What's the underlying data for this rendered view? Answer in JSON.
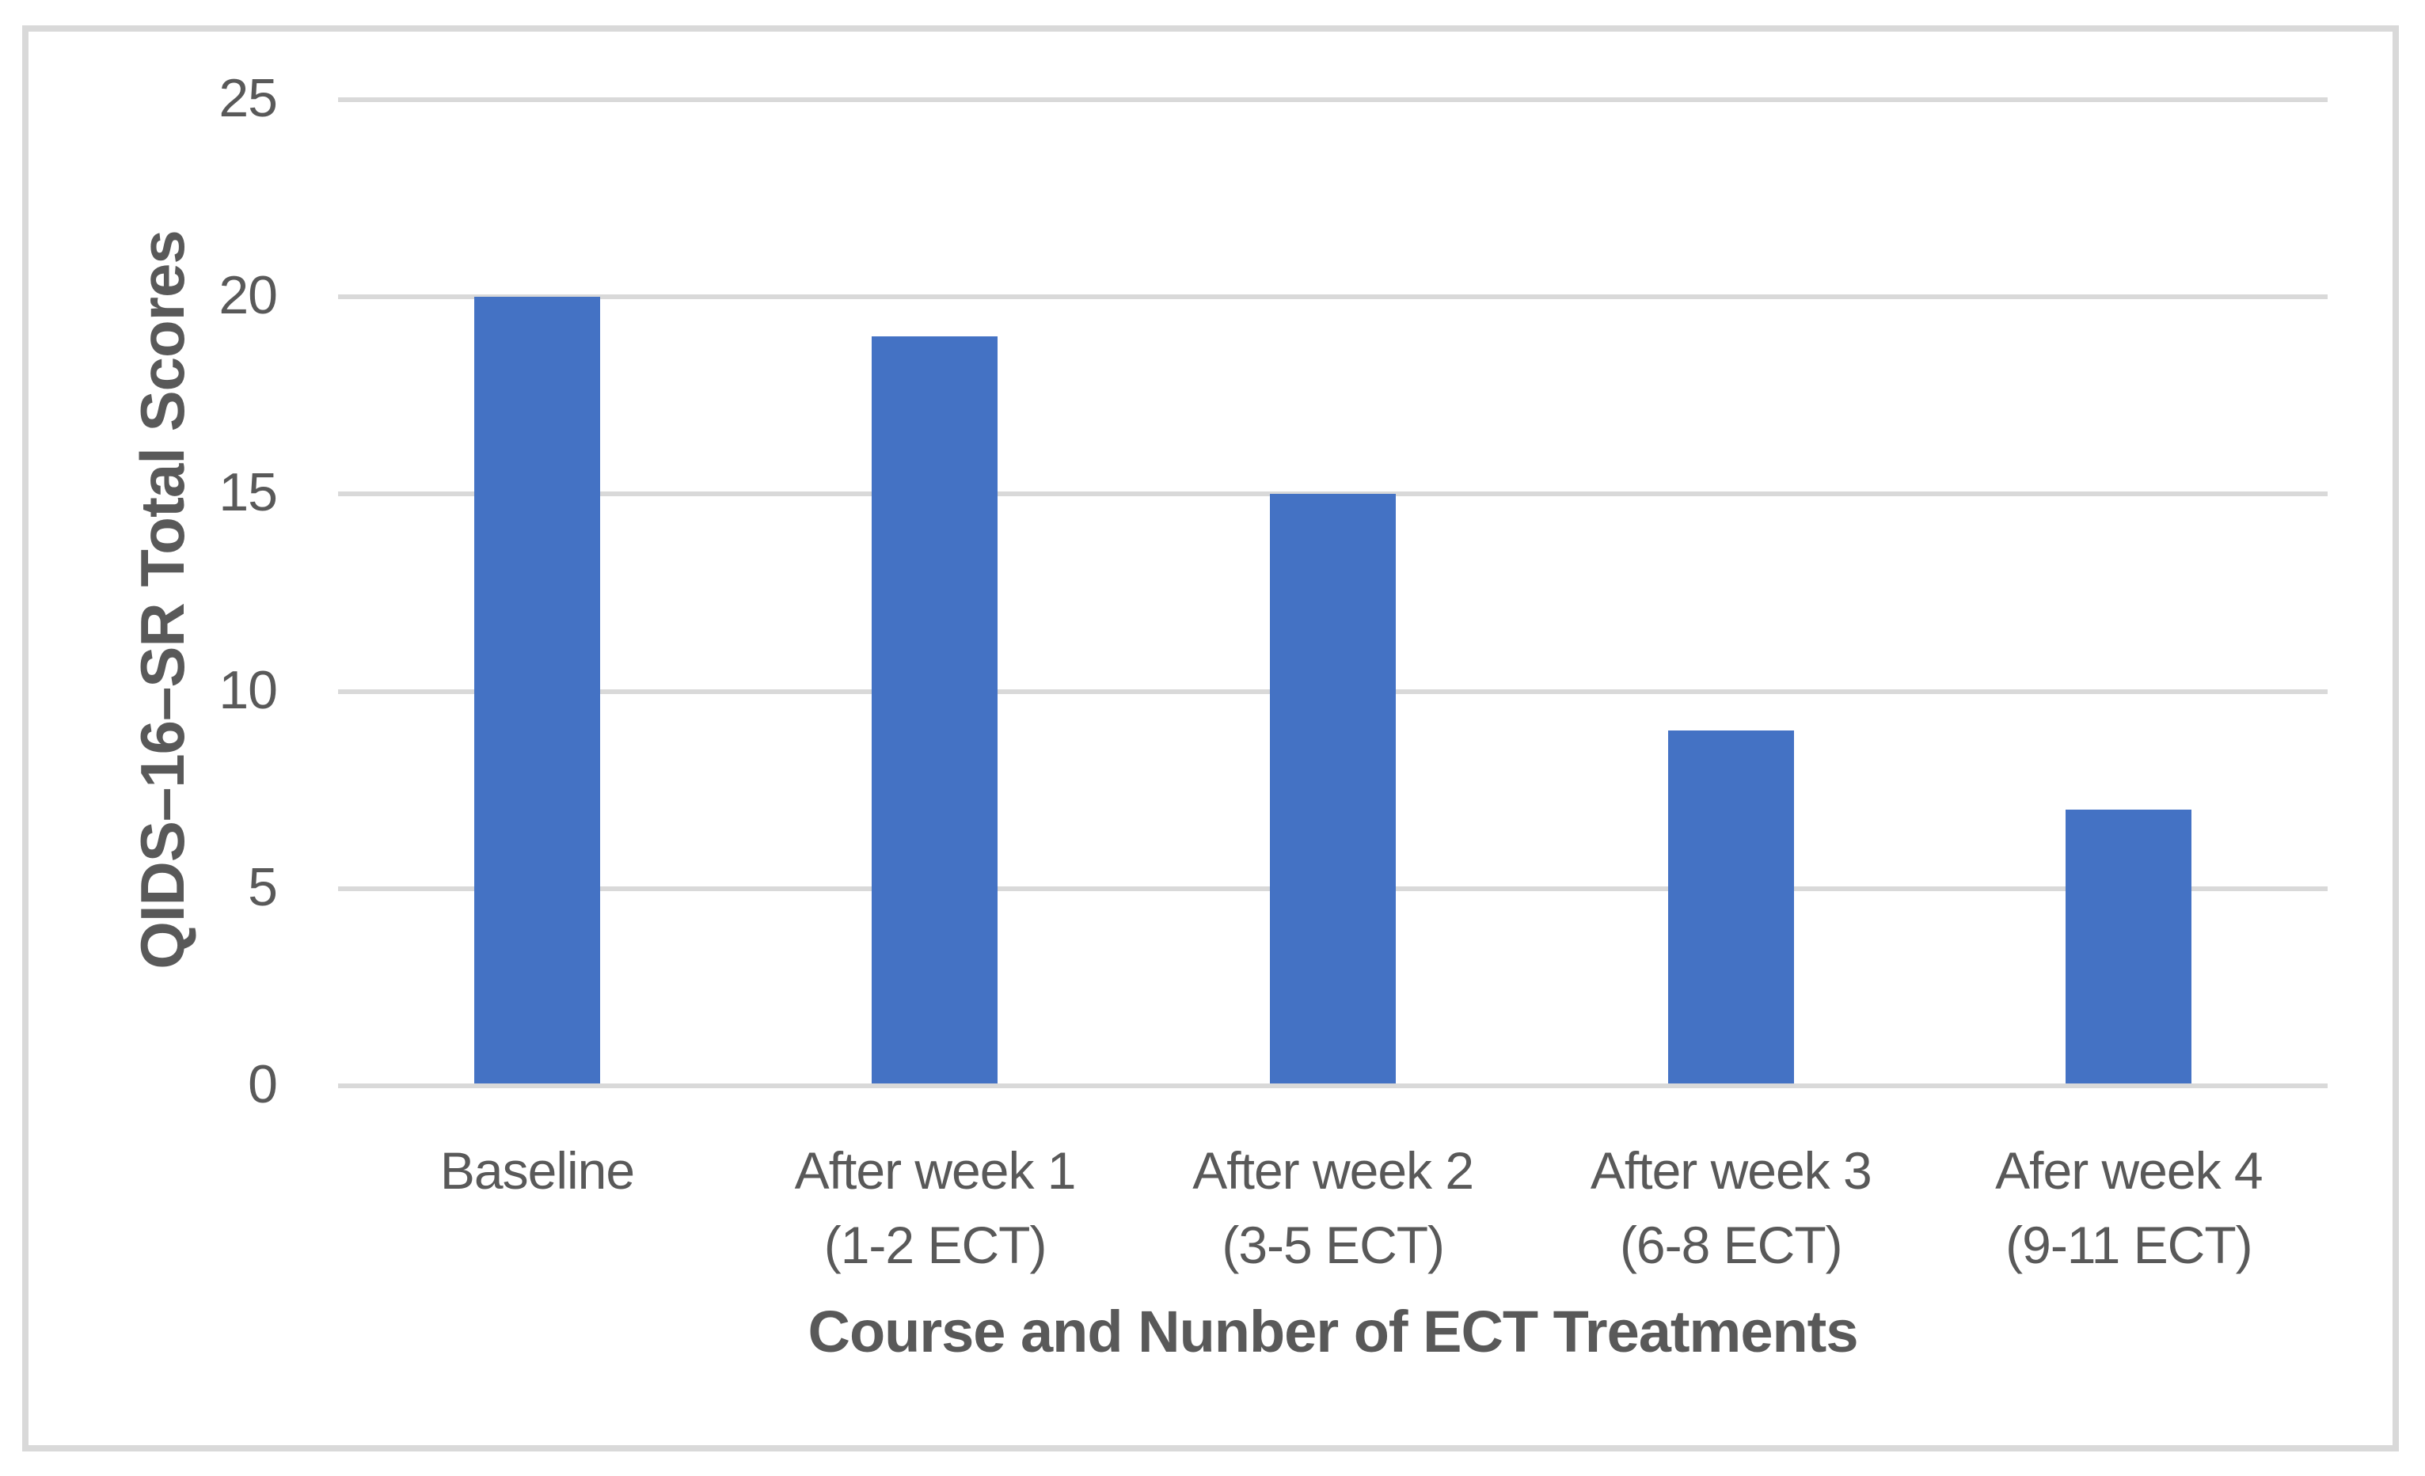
{
  "chart": {
    "background_color": "#FFFFFF",
    "frame_border_color": "#D9D9D9",
    "gridline_color": "#D9D9D9",
    "axis_line_color": "#D9D9D9",
    "text_color": "#595959",
    "bar_color": "#4472C4"
  },
  "chart_data": {
    "type": "bar",
    "categories": [
      "Baseline",
      "After week 1\n(1-2 ECT)",
      "After week 2\n(3-5 ECT)",
      "After week 3\n(6-8 ECT)",
      "Afer week 4\n(9-11 ECT)"
    ],
    "values": [
      20,
      19,
      15,
      9,
      7
    ],
    "title": "",
    "xlabel": "Course and Nunber of ECT Treatments",
    "ylabel": "QIDS–16–SR Total Scores",
    "ylim": [
      0,
      25
    ],
    "yticks": [
      0,
      5,
      10,
      15,
      20,
      25
    ],
    "grid": true,
    "legend": false,
    "series_name": "QIDS-16-SR Total Scores"
  }
}
